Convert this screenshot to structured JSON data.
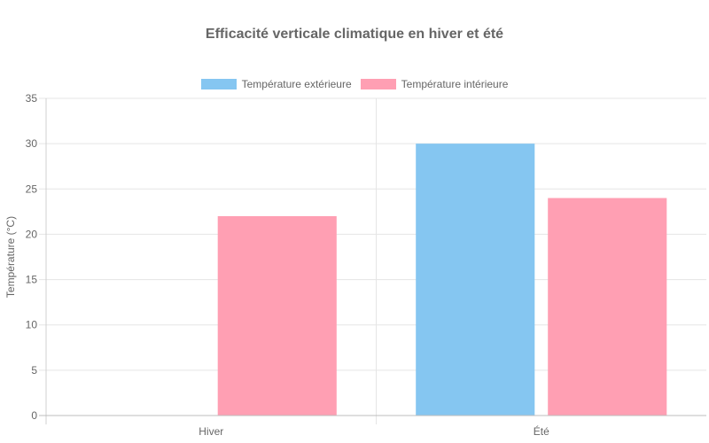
{
  "chart_data": {
    "type": "bar",
    "title": "Efficacité verticale climatique en hiver et été",
    "ylabel": "Température (°C)",
    "xlabel": "",
    "categories": [
      "Hiver",
      "Été"
    ],
    "series": [
      {
        "name": "Température extérieure",
        "color": "#85c6f1",
        "values": [
          0,
          30
        ]
      },
      {
        "name": "Température intérieure",
        "color": "#ff9fb3",
        "values": [
          22,
          24
        ]
      }
    ],
    "ylim": [
      0,
      35
    ],
    "yticks": [
      0,
      5,
      10,
      15,
      20,
      25,
      30,
      35
    ],
    "grid": true,
    "legend_position": "top"
  }
}
